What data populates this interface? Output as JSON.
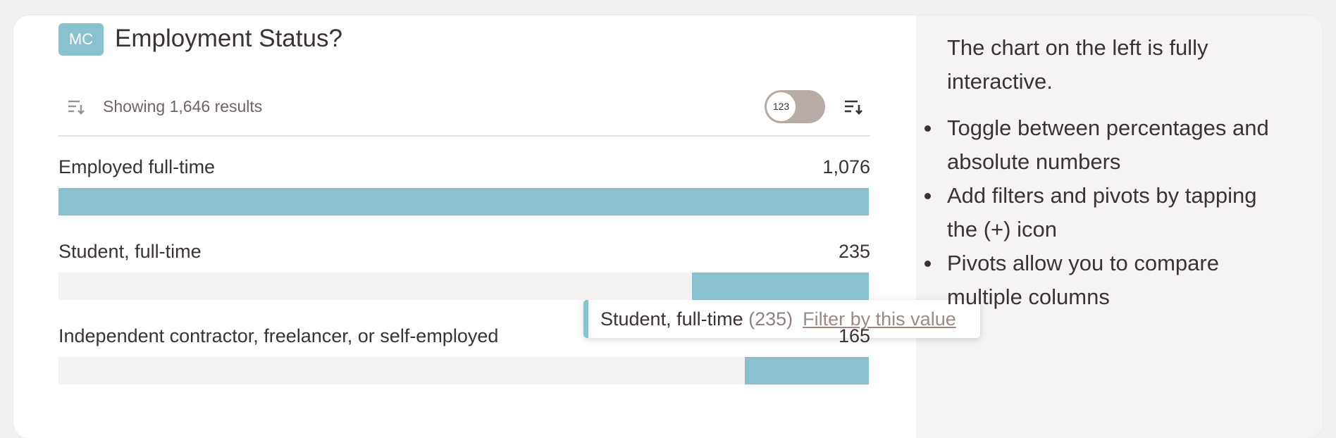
{
  "header": {
    "badge": "MC",
    "title": "Employment Status?"
  },
  "toolbar": {
    "summary": "Showing 1,646 results",
    "toggle_label": "123"
  },
  "chart_data": {
    "type": "bar",
    "orientation": "horizontal",
    "categories": [
      "Employed full-time",
      "Student, full-time",
      "Independent contractor, freelancer, or self-employed"
    ],
    "values": [
      1076,
      235,
      165
    ],
    "value_labels": [
      "1,076",
      "235",
      "165"
    ],
    "xlim": [
      0,
      1076
    ],
    "color": "#88c2ce",
    "track_color": "#f3f2f1"
  },
  "tooltip": {
    "label": "Student, full-time",
    "count": "(235)",
    "action": "Filter by this value"
  },
  "help": {
    "intro": "The chart on the left is fully interactive.",
    "bullets": [
      "Toggle between percentages and absolute numbers",
      "Add filters and pivots by tapping the (+) icon",
      "Pivots allow you to compare multiple columns"
    ]
  }
}
